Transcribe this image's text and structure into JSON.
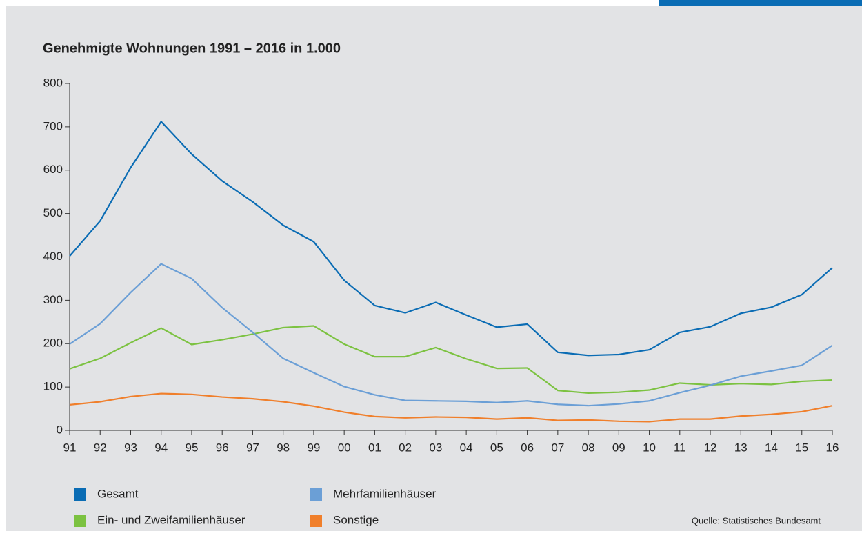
{
  "chart_data": {
    "type": "line",
    "title": "Genehmigte Wohnungen 1991 – 2016 in 1.000",
    "categories": [
      "91",
      "92",
      "93",
      "94",
      "95",
      "96",
      "97",
      "98",
      "99",
      "00",
      "01",
      "02",
      "03",
      "04",
      "05",
      "06",
      "07",
      "08",
      "09",
      "10",
      "11",
      "12",
      "13",
      "14",
      "15",
      "16"
    ],
    "series": [
      {
        "name": "Gesamt",
        "color": "#0a6cb4",
        "values": [
          402,
          483,
          606,
          712,
          637,
          575,
          527,
          473,
          435,
          346,
          288,
          271,
          295,
          266,
          238,
          245,
          180,
          173,
          175,
          186,
          226,
          239,
          270,
          284,
          313,
          375
        ]
      },
      {
        "name": "Mehrfamilienhäuser",
        "color": "#6b9fd6",
        "values": [
          199,
          246,
          318,
          384,
          350,
          283,
          226,
          166,
          133,
          101,
          82,
          69,
          68,
          67,
          64,
          68,
          60,
          57,
          61,
          68,
          87,
          104,
          125,
          137,
          150,
          196
        ]
      },
      {
        "name": "Ein- und Zweifamilienhäuser",
        "color": "#7cc241",
        "values": [
          142,
          166,
          202,
          236,
          198,
          209,
          222,
          237,
          241,
          199,
          170,
          170,
          191,
          165,
          143,
          144,
          92,
          86,
          88,
          93,
          109,
          105,
          108,
          106,
          113,
          116
        ]
      },
      {
        "name": "Sonstige",
        "color": "#f07f2b",
        "values": [
          59,
          66,
          78,
          85,
          83,
          77,
          73,
          66,
          56,
          42,
          32,
          29,
          31,
          30,
          26,
          29,
          23,
          24,
          21,
          20,
          26,
          26,
          33,
          37,
          43,
          57
        ]
      }
    ],
    "ylim": [
      0,
      800
    ],
    "yticks": [
      0,
      100,
      200,
      300,
      400,
      500,
      600,
      700,
      800
    ],
    "source": "Quelle: Statistisches Bundesamt"
  }
}
